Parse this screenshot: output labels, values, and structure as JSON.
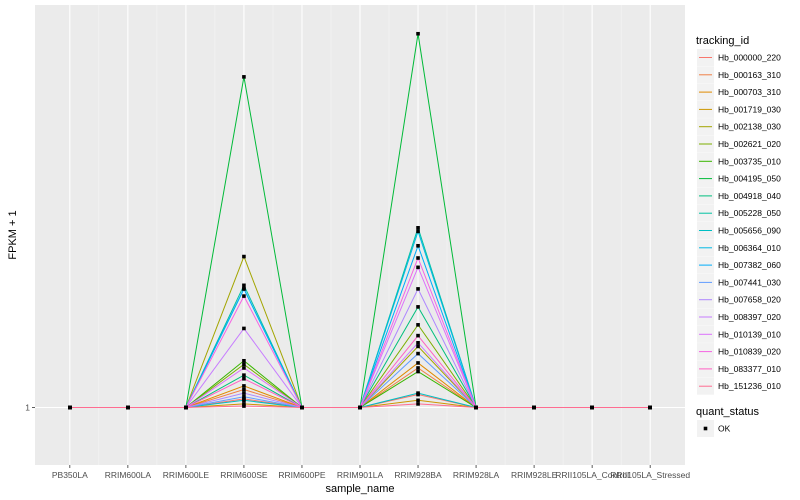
{
  "chart_data": {
    "type": "line",
    "xlabel": "sample_name",
    "ylabel": "FPKM + 1",
    "categories": [
      "PB350LA",
      "RRIM600LA",
      "RRIM600LE",
      "RRIM600SE",
      "RRIM600PE",
      "RRIM901LA",
      "RRIM928BA",
      "RRIM928LA",
      "RRIM928LE",
      "RRII105LA_Control",
      "RRII105LA_Stressed"
    ],
    "y_ticks": [
      "1"
    ],
    "ylim": [
      0.92,
      1.56
    ],
    "grid": true,
    "legend_title": "tracking_id",
    "legend_position": "right",
    "series": [
      {
        "name": "Hb_000000_220",
        "color": "#F8766D",
        "values": [
          1,
          1,
          1,
          1.012,
          1,
          1,
          1.018,
          1,
          1,
          1,
          1
        ]
      },
      {
        "name": "Hb_000163_310",
        "color": "#EF7F47",
        "values": [
          1,
          1,
          1,
          1.025,
          1,
          1,
          1.055,
          1,
          1,
          1,
          1
        ]
      },
      {
        "name": "Hb_000703_310",
        "color": "#E08B00",
        "values": [
          1,
          1,
          1,
          1.03,
          1,
          1,
          1.062,
          1,
          1,
          1,
          1
        ]
      },
      {
        "name": "Hb_001719_030",
        "color": "#CC9600",
        "values": [
          1,
          1,
          1,
          1.005,
          1,
          1,
          1.01,
          1,
          1,
          1,
          1
        ]
      },
      {
        "name": "Hb_002138_030",
        "color": "#A3A500",
        "values": [
          1,
          1,
          1,
          1.21,
          1,
          1,
          1.085,
          1,
          1,
          1,
          1
        ]
      },
      {
        "name": "Hb_002621_020",
        "color": "#7CAE00",
        "values": [
          1,
          1,
          1,
          1.06,
          1,
          1,
          1.115,
          1,
          1,
          1,
          1
        ]
      },
      {
        "name": "Hb_003735_010",
        "color": "#39B600",
        "values": [
          1,
          1,
          1,
          1.065,
          1,
          1,
          1.05,
          1,
          1,
          1,
          1
        ]
      },
      {
        "name": "Hb_004195_050",
        "color": "#00BA38",
        "values": [
          1,
          1,
          1,
          1.46,
          1,
          1,
          1.52,
          1,
          1,
          1,
          1
        ]
      },
      {
        "name": "Hb_004918_040",
        "color": "#00BF7D",
        "values": [
          1,
          1,
          1,
          1.045,
          1,
          1,
          1.14,
          1,
          1,
          1,
          1
        ]
      },
      {
        "name": "Hb_005228_050",
        "color": "#00C1A3",
        "values": [
          1,
          1,
          1,
          1.17,
          1,
          1,
          1.25,
          1,
          1,
          1,
          1
        ]
      },
      {
        "name": "Hb_005656_090",
        "color": "#00BFC4",
        "values": [
          1,
          1,
          1,
          1.01,
          1,
          1,
          1.02,
          1,
          1,
          1,
          1
        ]
      },
      {
        "name": "Hb_006364_010",
        "color": "#00B9E3",
        "values": [
          1,
          1,
          1,
          1.165,
          1,
          1,
          1.245,
          1,
          1,
          1,
          1
        ]
      },
      {
        "name": "Hb_007382_060",
        "color": "#00ADFA",
        "values": [
          1,
          1,
          1,
          1.165,
          1,
          1,
          1.225,
          1,
          1,
          1,
          1
        ]
      },
      {
        "name": "Hb_007441_030",
        "color": "#619CFF",
        "values": [
          1,
          1,
          1,
          1.015,
          1,
          1,
          1.075,
          1,
          1,
          1,
          1
        ]
      },
      {
        "name": "Hb_007658_020",
        "color": "#AE87FF",
        "values": [
          1,
          1,
          1,
          1.02,
          1,
          1,
          1.165,
          1,
          1,
          1,
          1
        ]
      },
      {
        "name": "Hb_008397_020",
        "color": "#C77CFF",
        "values": [
          1,
          1,
          1,
          1.11,
          1,
          1,
          1.09,
          1,
          1,
          1,
          1
        ]
      },
      {
        "name": "Hb_010139_010",
        "color": "#DB72FB",
        "values": [
          1,
          1,
          1,
          1.055,
          1,
          1,
          1.195,
          1,
          1,
          1,
          1
        ]
      },
      {
        "name": "Hb_010839_020",
        "color": "#F564E3",
        "values": [
          1,
          1,
          1,
          1.155,
          1,
          1,
          1.208,
          1,
          1,
          1,
          1
        ]
      },
      {
        "name": "Hb_083377_010",
        "color": "#FF61C3",
        "values": [
          1,
          1,
          1,
          1.04,
          1,
          1,
          1.1,
          1,
          1,
          1,
          1
        ]
      },
      {
        "name": "Hb_151236_010",
        "color": "#FF6C91",
        "values": [
          1,
          1,
          1,
          1.002,
          1,
          1,
          1.005,
          1,
          1,
          1,
          1
        ]
      }
    ],
    "shape_legend_title": "quant_status",
    "shape_legend_entries": [
      "OK"
    ]
  }
}
